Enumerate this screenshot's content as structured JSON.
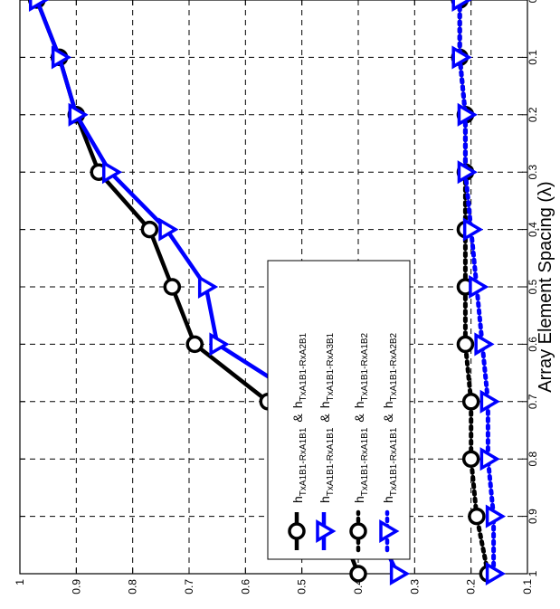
{
  "chart_data": {
    "type": "line",
    "orientation": "rotated-90-clockwise",
    "xlabel": "Array Element Spacing (λ)",
    "ylabel": "",
    "title": "",
    "x": [
      0,
      0.1,
      0.2,
      0.3,
      0.4,
      0.5,
      0.6,
      0.7,
      0.8,
      0.9,
      1
    ],
    "xlim": [
      0,
      1
    ],
    "ylim": [
      0.1,
      1
    ],
    "x_ticks": [
      "0",
      "0.1",
      "0.2",
      "0.3",
      "0.4",
      "0.5",
      "0.6",
      "0.7",
      "0.8",
      "0.9",
      "1"
    ],
    "y_ticks": [
      "0.1",
      "0.2",
      "0.3",
      "0.4",
      "0.5",
      "0.6",
      "0.7",
      "0.8",
      "0.9"
    ],
    "grid": true,
    "legend_position": "inside-lower-middle",
    "series": [
      {
        "legend_main": "h",
        "legend_sub1": "TxA1B1-RxA1B1",
        "legend_amp": "&",
        "legend_main2": "h",
        "legend_sub2": "TxA1B1-RxA2B1",
        "color": "#000000",
        "line_style": "solid",
        "marker": "circle",
        "values": [
          0.97,
          0.93,
          0.9,
          0.86,
          0.77,
          0.73,
          0.69,
          0.56,
          0.5,
          0.44,
          0.4
        ]
      },
      {
        "legend_main": "h",
        "legend_sub1": "TxA1B1-RxA1B1",
        "legend_amp": "&",
        "legend_main2": "h",
        "legend_sub2": "TxA1B1-RxA3B1",
        "color": "#0000ff",
        "line_style": "solid",
        "marker": "triangle-down",
        "values": [
          0.97,
          0.93,
          0.9,
          0.84,
          0.74,
          0.67,
          0.65,
          0.49,
          0.43,
          0.38,
          0.33
        ]
      },
      {
        "legend_main": "h",
        "legend_sub1": "TxA1B1-RxA1B1",
        "legend_amp": "&",
        "legend_main2": "h",
        "legend_sub2": "TxA1B1-RxA1B2",
        "color": "#000000",
        "line_style": "dotted",
        "marker": "circle",
        "values": [
          0.22,
          0.22,
          0.21,
          0.21,
          0.21,
          0.21,
          0.21,
          0.2,
          0.2,
          0.19,
          0.17
        ]
      },
      {
        "legend_main": "h",
        "legend_sub1": "TxA1B1-RxA1B1",
        "legend_amp": "&",
        "legend_main2": "h",
        "legend_sub2": "TxA1B1-RxA2B2",
        "color": "#0000ff",
        "line_style": "dotted",
        "marker": "triangle-down",
        "values": [
          0.22,
          0.22,
          0.21,
          0.21,
          0.2,
          0.19,
          0.18,
          0.17,
          0.17,
          0.16,
          0.16
        ]
      }
    ]
  }
}
